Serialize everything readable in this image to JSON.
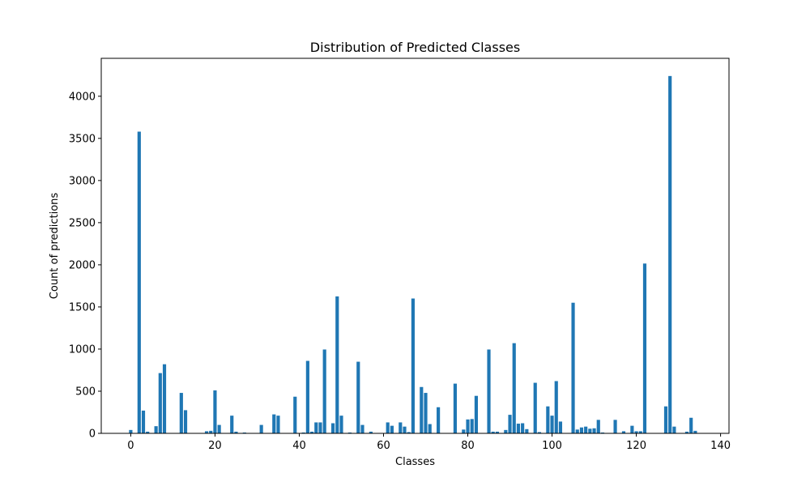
{
  "chart_data": {
    "type": "bar",
    "title": "Distribution of Predicted Classes",
    "xlabel": "Classes",
    "ylabel": "Count of predictions",
    "xlim": [
      -7,
      142
    ],
    "ylim": [
      0,
      4450
    ],
    "xticks": [
      0,
      20,
      40,
      60,
      80,
      100,
      120,
      140
    ],
    "yticks": [
      0,
      500,
      1000,
      1500,
      2000,
      2500,
      3000,
      3500,
      4000
    ],
    "grid": false,
    "bar_color": "#1f77b4",
    "x": [
      0,
      2,
      3,
      4,
      6,
      7,
      8,
      12,
      13,
      18,
      19,
      20,
      21,
      24,
      25,
      27,
      31,
      34,
      35,
      39,
      41,
      42,
      43,
      44,
      45,
      46,
      48,
      49,
      50,
      52,
      54,
      55,
      57,
      61,
      62,
      64,
      65,
      66,
      67,
      69,
      70,
      71,
      73,
      77,
      79,
      80,
      81,
      82,
      85,
      86,
      87,
      89,
      90,
      91,
      92,
      93,
      94,
      96,
      97,
      99,
      100,
      101,
      102,
      105,
      106,
      107,
      108,
      109,
      110,
      111,
      112,
      115,
      117,
      119,
      120,
      121,
      122,
      127,
      128,
      129,
      132,
      133,
      134
    ],
    "values": [
      40,
      3580,
      270,
      20,
      85,
      715,
      820,
      480,
      275,
      25,
      30,
      510,
      100,
      210,
      20,
      10,
      100,
      225,
      210,
      435,
      10,
      860,
      20,
      130,
      130,
      995,
      120,
      1625,
      210,
      10,
      850,
      100,
      20,
      130,
      90,
      130,
      80,
      15,
      1600,
      550,
      480,
      110,
      310,
      590,
      45,
      165,
      170,
      445,
      995,
      20,
      20,
      40,
      220,
      1070,
      115,
      120,
      50,
      600,
      15,
      320,
      210,
      620,
      140,
      1550,
      45,
      70,
      80,
      55,
      60,
      160,
      10,
      160,
      25,
      90,
      25,
      25,
      2015,
      320,
      4240,
      80,
      20,
      185,
      30
    ]
  }
}
